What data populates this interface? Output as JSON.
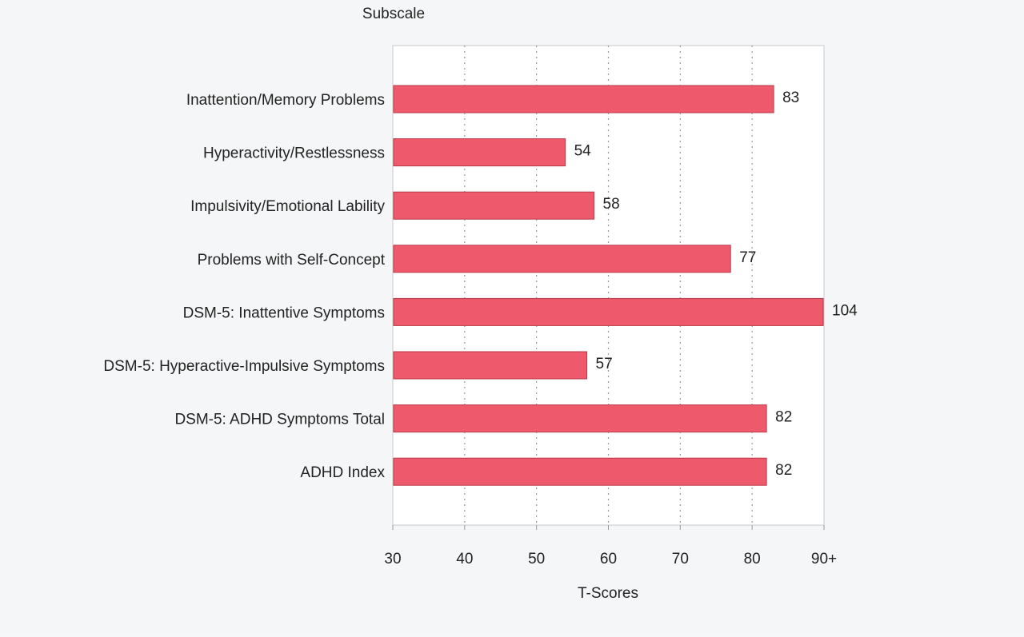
{
  "chart_data": {
    "type": "bar",
    "orientation": "horizontal",
    "title": "",
    "category_axis_title": "Subscale",
    "xlabel": "T-Scores",
    "ylabel": "Subscale",
    "categories": [
      "Inattention/Memory Problems",
      "Hyperactivity/Restlessness",
      "Impulsivity/Emotional Lability",
      "Problems with Self-Concept",
      "DSM-5: Inattentive Symptoms",
      "DSM-5: Hyperactive-Impulsive Symptoms",
      "DSM-5: ADHD Symptoms Total",
      "ADHD Index"
    ],
    "values": [
      83,
      54,
      58,
      77,
      104,
      57,
      82,
      82
    ],
    "data_labels": [
      "83",
      "54",
      "58",
      "77",
      "104",
      "57",
      "82",
      "82"
    ],
    "xlim": [
      30,
      90
    ],
    "x_ticks": [
      30,
      40,
      50,
      60,
      70,
      80,
      90
    ],
    "x_tick_labels": [
      "30",
      "40",
      "50",
      "60",
      "70",
      "80",
      "90+"
    ],
    "grid": "vertical dotted",
    "legend": "none",
    "bar_color": "#ee5a6c",
    "bar_edge_color": "#b83a48"
  }
}
